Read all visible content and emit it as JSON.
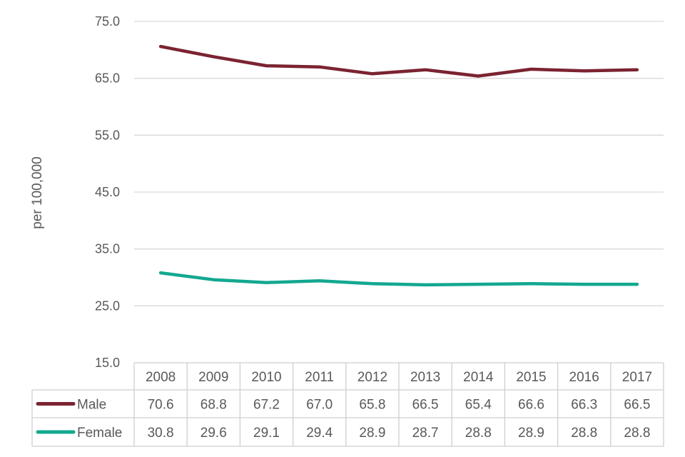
{
  "chart_data": {
    "type": "line",
    "title": "",
    "xlabel": "",
    "ylabel": "per 100,000",
    "ylim": [
      15.0,
      75.0
    ],
    "yticks": [
      "15.0",
      "25.0",
      "35.0",
      "45.0",
      "55.0",
      "65.0",
      "75.0"
    ],
    "categories": [
      "2008",
      "2009",
      "2010",
      "2011",
      "2012",
      "2013",
      "2014",
      "2015",
      "2016",
      "2017"
    ],
    "grid": true,
    "legend": "data-table",
    "series": [
      {
        "name": "Male",
        "color": "#7B2331",
        "values": [
          70.6,
          68.8,
          67.2,
          67.0,
          65.8,
          66.5,
          65.4,
          66.6,
          66.3,
          66.5
        ],
        "labels": [
          "70.6",
          "68.8",
          "67.2",
          "67.0",
          "65.8",
          "66.5",
          "65.4",
          "66.6",
          "66.3",
          "66.5"
        ]
      },
      {
        "name": "Female",
        "color": "#13A890",
        "values": [
          30.8,
          29.6,
          29.1,
          29.4,
          28.9,
          28.7,
          28.8,
          28.9,
          28.8,
          28.8
        ],
        "labels": [
          "30.8",
          "29.6",
          "29.1",
          "29.4",
          "28.9",
          "28.7",
          "28.8",
          "28.9",
          "28.8",
          "28.8"
        ]
      }
    ]
  }
}
